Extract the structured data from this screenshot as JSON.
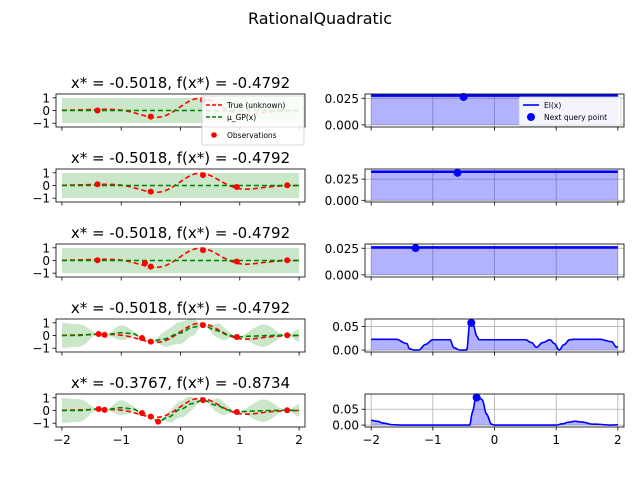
{
  "figure": {
    "suptitle": "RationalQuadratic",
    "gp_legend": [
      "True (unknown)",
      "μ_GP(x)",
      "Observations"
    ],
    "ei_legend": [
      "EI(x)",
      "Next query point"
    ],
    "colors": {
      "true": "#ff0000",
      "mean": "#008000",
      "band": "#2ca02c",
      "obs": "#ff0000",
      "ei": "#0000ff",
      "ei_fill": "#0000ff"
    }
  },
  "chart_data": [
    {
      "row": 1,
      "title": "x* = -0.5018, f(x*) = -0.4792",
      "type": "line",
      "gp": {
        "xlim": [
          -2.1,
          2.1
        ],
        "ylim": [
          -1.3,
          1.3
        ],
        "xticks": [
          -2,
          -1,
          0,
          1,
          2
        ],
        "yticks": [
          -1,
          0,
          1
        ],
        "obs_x": [
          -1.4,
          -0.5018,
          0.38
        ],
        "obs_y": [
          0.0,
          -0.4792,
          0.82
        ],
        "mean_x": [
          -2,
          -1.4,
          -0.5018,
          0.38,
          2
        ],
        "mean_y": [
          0.0,
          0.0,
          0.0,
          0.0,
          0.0
        ],
        "std": 0.5,
        "legend_placement": "upper-right"
      },
      "ei": {
        "xlim": [
          -2.1,
          2.1
        ],
        "ylim": [
          -0.002,
          0.029
        ],
        "xticks": [
          -2,
          -1,
          0,
          1,
          2
        ],
        "yticks": [
          0.0,
          0.025
        ],
        "ytick_labels": [
          "0.000",
          "0.025"
        ],
        "x": [
          -2.0,
          2.0
        ],
        "y": [
          0.0275,
          0.0275
        ],
        "next_x": -0.5018,
        "next_y": 0.0262,
        "legend_placement": "upper-right"
      }
    },
    {
      "row": 2,
      "title": "x* = -0.5018, f(x*) = -0.4792",
      "type": "line",
      "gp": {
        "xlim": [
          -2.1,
          2.1
        ],
        "ylim": [
          -1.3,
          1.3
        ],
        "xticks": [
          -2,
          -1,
          0,
          1,
          2
        ],
        "yticks": [
          -1,
          0,
          1
        ],
        "obs_x": [
          -1.4,
          -0.5018,
          0.38,
          0.95,
          1.8
        ],
        "obs_y": [
          0.1,
          -0.4792,
          0.82,
          -0.12,
          0.02
        ],
        "mean_x": [
          -2,
          -1.4,
          -0.5018,
          0.38,
          0.95,
          1.8,
          2
        ],
        "mean_y": [
          0.0,
          0.0,
          0.0,
          0.0,
          0.0,
          0.0,
          0.0
        ],
        "std": 0.5
      },
      "ei": {
        "xlim": [
          -2.1,
          2.1
        ],
        "ylim": [
          -0.002,
          0.037
        ],
        "xticks": [
          -2,
          -1,
          0,
          1,
          2
        ],
        "yticks": [
          0.0,
          0.025
        ],
        "ytick_labels": [
          "0.000",
          "0.025"
        ],
        "x": [
          -2.0,
          2.0
        ],
        "y": [
          0.0338,
          0.0338
        ],
        "next_x": -0.6,
        "next_y": 0.0325
      }
    },
    {
      "row": 3,
      "title": "x* = -0.5018, f(x*) = -0.4792",
      "type": "line",
      "gp": {
        "xlim": [
          -2.1,
          2.1
        ],
        "ylim": [
          -1.3,
          1.3
        ],
        "xticks": [
          -2,
          -1,
          0,
          1,
          2
        ],
        "yticks": [
          -1,
          0,
          1
        ],
        "obs_x": [
          -1.4,
          -0.6,
          -0.5018,
          0.38,
          0.95,
          1.8
        ],
        "obs_y": [
          0.02,
          -0.2,
          -0.4792,
          0.82,
          -0.08,
          0.02
        ],
        "mean_x": [
          -2,
          -1.4,
          -0.6,
          -0.5018,
          0.38,
          0.95,
          1.8,
          2
        ],
        "mean_y": [
          0.0,
          0.0,
          0.0,
          0.0,
          0.0,
          0.0,
          0.0,
          0.0
        ],
        "std": 0.5
      },
      "ei": {
        "xlim": [
          -2.1,
          2.1
        ],
        "ylim": [
          -0.002,
          0.029
        ],
        "xticks": [
          -2,
          -1,
          0,
          1,
          2
        ],
        "yticks": [
          0.0,
          0.025
        ],
        "ytick_labels": [
          "0.000",
          "0.025"
        ],
        "x": [
          -2.0,
          2.0
        ],
        "y": [
          0.0258,
          0.0258
        ],
        "next_x": -1.28,
        "next_y": 0.0252
      }
    },
    {
      "row": 4,
      "title": "x* = -0.5018, f(x*) = -0.4792",
      "type": "line",
      "gp": {
        "xlim": [
          -2.1,
          2.1
        ],
        "ylim": [
          -1.3,
          1.3
        ],
        "xticks": [
          -2,
          -1,
          0,
          1,
          2
        ],
        "yticks": [
          -1,
          0,
          1
        ],
        "obs_x": [
          -1.38,
          -1.28,
          -0.65,
          -0.5018,
          0.38,
          0.95,
          1.8
        ],
        "obs_y": [
          0.12,
          0.05,
          -0.2,
          -0.4792,
          0.82,
          -0.12,
          0.02
        ],
        "mean_x": [
          -2.0,
          -1.75,
          -1.38,
          -1.28,
          -1.0,
          -0.8,
          -0.65,
          -0.5018,
          -0.3,
          0.0,
          0.2,
          0.38,
          0.6,
          0.8,
          0.95,
          1.2,
          1.5,
          1.8,
          2.0
        ],
        "mean_y": [
          0.0,
          0.0,
          0.12,
          0.05,
          0.22,
          0.15,
          -0.2,
          -0.4792,
          -0.3,
          0.2,
          0.65,
          0.82,
          0.4,
          0.05,
          -0.12,
          -0.05,
          0.0,
          0.02,
          0.0
        ],
        "std_x": [
          -2.0,
          -1.7,
          -1.38,
          -1.33,
          -1.28,
          -1.0,
          -0.65,
          -0.58,
          -0.5018,
          -0.2,
          0.0,
          0.2,
          0.38,
          0.66,
          0.95,
          1.4,
          1.8,
          2.0
        ],
        "std_y": [
          0.5,
          0.45,
          0.0,
          0.02,
          0.0,
          0.3,
          0.0,
          0.03,
          0.0,
          0.35,
          0.45,
          0.35,
          0.0,
          0.3,
          0.0,
          0.45,
          0.0,
          0.25
        ]
      },
      "ei": {
        "xlim": [
          -2.1,
          2.1
        ],
        "ylim": [
          -0.004,
          0.066
        ],
        "xticks": [
          -2,
          -1,
          0,
          1,
          2
        ],
        "yticks": [
          0.0,
          0.05
        ],
        "ytick_labels": [
          "0.00",
          "0.05"
        ],
        "x": [
          -2.0,
          -1.6,
          -1.42,
          -1.38,
          -1.3,
          -1.23,
          -1.12,
          -1.0,
          -0.72,
          -0.66,
          -0.56,
          -0.48,
          -0.45,
          -0.4,
          -0.34,
          -0.29,
          -0.25,
          -0.15,
          0.0,
          0.3,
          0.5,
          0.6,
          0.68,
          0.78,
          0.9,
          0.97,
          1.05,
          1.12,
          1.22,
          1.3,
          1.7,
          1.9,
          1.98,
          2.0
        ],
        "y": [
          0.023,
          0.023,
          0.014,
          0.003,
          0.0,
          0.0,
          0.012,
          0.022,
          0.022,
          0.005,
          0.0,
          0.0,
          0.0,
          0.06,
          0.052,
          0.03,
          0.022,
          0.022,
          0.022,
          0.022,
          0.022,
          0.016,
          0.006,
          0.016,
          0.022,
          0.014,
          0.0,
          0.011,
          0.022,
          0.023,
          0.023,
          0.018,
          0.006,
          0.008
        ],
        "next_x": -0.3767,
        "next_y": 0.058
      }
    },
    {
      "row": 5,
      "title": "x* = -0.3767, f(x*) = -0.8734",
      "type": "line",
      "gp": {
        "xlim": [
          -2.1,
          2.1
        ],
        "ylim": [
          -1.3,
          1.3
        ],
        "xticks": [
          -2,
          -1,
          0,
          1,
          2
        ],
        "yticks": [
          -1,
          0,
          1
        ],
        "obs_x": [
          -1.38,
          -1.28,
          -0.65,
          -0.5018,
          -0.3767,
          0.38,
          0.95,
          1.8
        ],
        "obs_y": [
          0.12,
          0.05,
          -0.2,
          -0.4792,
          -0.8734,
          0.82,
          -0.12,
          0.02
        ],
        "mean_x": [
          -2.0,
          -1.7,
          -1.38,
          -1.28,
          -1.0,
          -0.8,
          -0.65,
          -0.5018,
          -0.3767,
          -0.2,
          0.0,
          0.2,
          0.38,
          0.6,
          0.8,
          0.95,
          1.2,
          1.5,
          1.8,
          2.0
        ],
        "mean_y": [
          0.0,
          0.0,
          0.12,
          0.05,
          0.22,
          0.12,
          -0.2,
          -0.4792,
          -0.8734,
          -0.5,
          0.1,
          0.55,
          0.82,
          0.42,
          0.05,
          -0.12,
          -0.05,
          0.0,
          0.02,
          0.0
        ],
        "std_x": [
          -2.0,
          -1.7,
          -1.38,
          -1.33,
          -1.28,
          -1.0,
          -0.65,
          -0.58,
          -0.5018,
          -0.44,
          -0.3767,
          -0.1,
          0.1,
          0.38,
          0.66,
          0.95,
          1.4,
          1.8,
          2.0
        ],
        "std_y": [
          0.5,
          0.45,
          0.0,
          0.02,
          0.0,
          0.3,
          0.0,
          0.03,
          0.0,
          0.02,
          0.0,
          0.3,
          0.35,
          0.0,
          0.3,
          0.0,
          0.45,
          0.0,
          0.25
        ]
      },
      "ei": {
        "xlim": [
          -2.1,
          2.1
        ],
        "ylim": [
          -0.006,
          0.098
        ],
        "xticks": [
          -2,
          -1,
          0,
          1,
          2
        ],
        "yticks": [
          0.0,
          0.05
        ],
        "ytick_labels": [
          "0.00",
          "0.05"
        ],
        "xtick_labels": [
          "−2",
          "−1",
          "0",
          "1",
          "2"
        ],
        "x": [
          -2.0,
          -1.9,
          -1.8,
          -1.65,
          -1.5,
          -1.0,
          -0.6,
          -0.4,
          -0.36,
          -0.3,
          -0.25,
          -0.2,
          -0.13,
          -0.05,
          0.0,
          0.6,
          1.0,
          1.1,
          1.2,
          1.3,
          1.4,
          1.6,
          1.9,
          2.0
        ],
        "y": [
          0.015,
          0.012,
          0.006,
          0.001,
          0.0,
          0.0,
          0.0,
          0.0,
          0.04,
          0.088,
          0.087,
          0.08,
          0.035,
          0.003,
          0.0,
          0.0,
          0.0,
          0.004,
          0.009,
          0.012,
          0.01,
          0.003,
          0.0,
          0.001
        ],
        "next_x": -0.29,
        "next_y": 0.087
      }
    }
  ]
}
